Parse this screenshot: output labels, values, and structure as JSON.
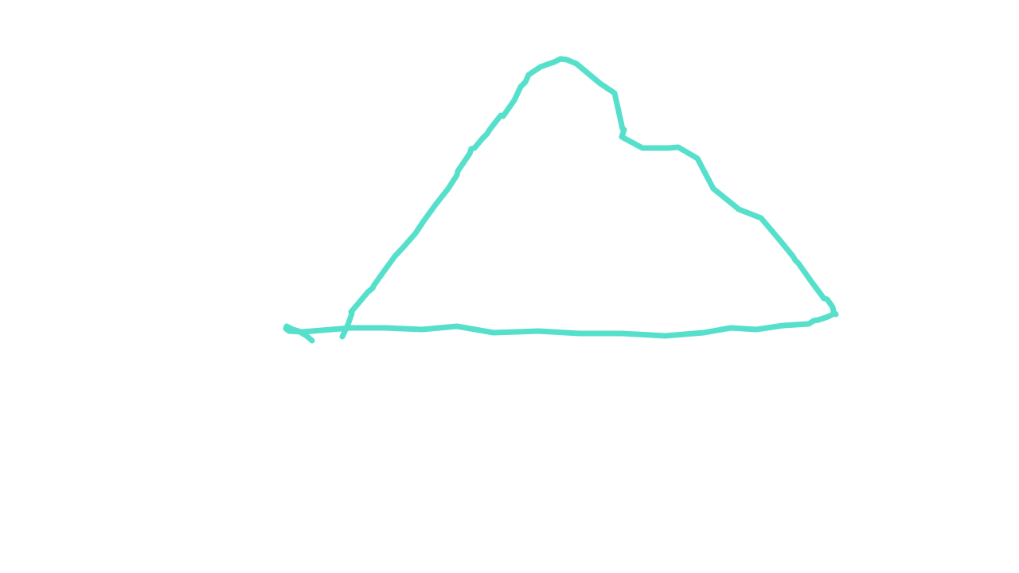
{
  "drawing": {
    "background_color": "#ffffff",
    "stroke_color": "#56e0cc",
    "subject": "mountain-outline-sketch"
  }
}
